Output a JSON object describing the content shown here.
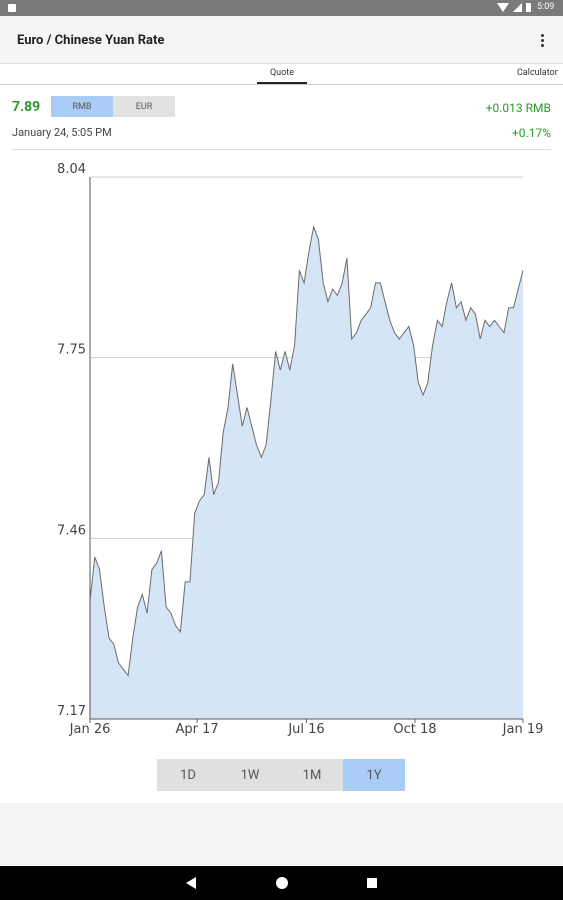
{
  "status_bar": {
    "time": "5:09"
  },
  "app_bar": {
    "title": "Euro / Chinese Yuan Rate"
  },
  "tabs": [
    "Quote",
    "Calculator"
  ],
  "quote": {
    "price": "7.89",
    "currencies": [
      "RMB",
      "EUR"
    ],
    "change": "+0.013 RMB",
    "timestamp": "January 24, 5:05 PM",
    "change_percent": "+0.17%"
  },
  "ranges": [
    "1D",
    "1W",
    "1M",
    "1Y"
  ],
  "chart_data": {
    "type": "area",
    "line_color": "#6b6b6b",
    "color": "#d5e5f6",
    "grid": true,
    "values": [
      7.36,
      7.43,
      7.41,
      7.35,
      7.3,
      7.29,
      7.26,
      7.25,
      7.24,
      7.3,
      7.35,
      7.37,
      7.34,
      7.41,
      7.42,
      7.44,
      7.35,
      7.34,
      7.32,
      7.31,
      7.39,
      7.39,
      7.5,
      7.52,
      7.53,
      7.59,
      7.53,
      7.55,
      7.63,
      7.67,
      7.74,
      7.69,
      7.64,
      7.67,
      7.64,
      7.61,
      7.59,
      7.61,
      7.68,
      7.76,
      7.73,
      7.76,
      7.73,
      7.77,
      7.89,
      7.87,
      7.92,
      7.96,
      7.94,
      7.87,
      7.84,
      7.86,
      7.85,
      7.87,
      7.91,
      7.78,
      7.79,
      7.81,
      7.82,
      7.83,
      7.87,
      7.87,
      7.84,
      7.81,
      7.79,
      7.78,
      7.79,
      7.8,
      7.77,
      7.71,
      7.69,
      7.71,
      7.77,
      7.81,
      7.8,
      7.84,
      7.87,
      7.83,
      7.84,
      7.81,
      7.83,
      7.82,
      7.78,
      7.81,
      7.8,
      7.81,
      7.8,
      7.79,
      7.83,
      7.83,
      7.86,
      7.89
    ],
    "xlim": [
      0,
      91
    ],
    "xticks": [
      {
        "value": 0,
        "label": "Jan 26"
      },
      {
        "value": 22.5,
        "label": "Apr 17"
      },
      {
        "value": 45.5,
        "label": "Jul 16"
      },
      {
        "value": 68.3,
        "label": "Oct 18"
      },
      {
        "value": 91,
        "label": "Jan 19"
      }
    ],
    "ylim": [
      7.17,
      8.04
    ],
    "yticks": [
      7.17,
      7.46,
      7.75,
      8.04
    ]
  }
}
